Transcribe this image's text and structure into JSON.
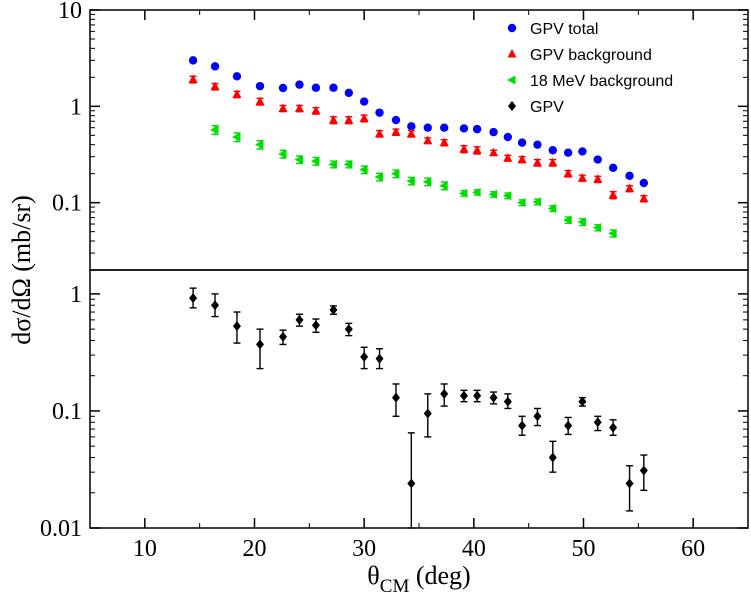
{
  "chart_data": {
    "type": "scatter",
    "xlabel": "θ",
    "xlabel_sub": "CM",
    "xlabel_unit": " (deg)",
    "ylabel": "dσ/dΩ (mb/sr)",
    "xlim": [
      5,
      65
    ],
    "x_ticks": [
      10,
      20,
      30,
      40,
      50,
      60
    ],
    "legend_position": "top-right",
    "panels": [
      {
        "id": "top",
        "ylim": [
          0.02,
          10
        ],
        "y_scale": "log",
        "y_ticks": [
          {
            "value": 10,
            "label": "10"
          },
          {
            "value": 1,
            "label": "1"
          },
          {
            "value": 0.1,
            "label": "0.1"
          }
        ],
        "series": [
          {
            "name": "GPV total",
            "marker": "circle",
            "color": "#0000ff",
            "points": [
              {
                "x": 14.4,
                "y": 3.0
              },
              {
                "x": 16.4,
                "y": 2.6
              },
              {
                "x": 18.4,
                "y": 2.05
              },
              {
                "x": 20.5,
                "y": 1.62
              },
              {
                "x": 22.6,
                "y": 1.55
              },
              {
                "x": 24.1,
                "y": 1.68
              },
              {
                "x": 25.6,
                "y": 1.56
              },
              {
                "x": 27.2,
                "y": 1.56
              },
              {
                "x": 28.6,
                "y": 1.38
              },
              {
                "x": 30.0,
                "y": 1.12
              },
              {
                "x": 31.4,
                "y": 0.86
              },
              {
                "x": 32.9,
                "y": 0.72
              },
              {
                "x": 34.3,
                "y": 0.62
              },
              {
                "x": 35.8,
                "y": 0.6
              },
              {
                "x": 37.3,
                "y": 0.6
              },
              {
                "x": 39.1,
                "y": 0.59
              },
              {
                "x": 40.3,
                "y": 0.58
              },
              {
                "x": 41.8,
                "y": 0.54
              },
              {
                "x": 43.1,
                "y": 0.48
              },
              {
                "x": 44.4,
                "y": 0.42
              },
              {
                "x": 45.8,
                "y": 0.4
              },
              {
                "x": 47.2,
                "y": 0.35
              },
              {
                "x": 48.6,
                "y": 0.33
              },
              {
                "x": 49.9,
                "y": 0.34
              },
              {
                "x": 51.3,
                "y": 0.28
              },
              {
                "x": 52.7,
                "y": 0.23
              },
              {
                "x": 54.2,
                "y": 0.19
              },
              {
                "x": 55.5,
                "y": 0.16
              }
            ]
          },
          {
            "name": "GPV background",
            "marker": "triangle",
            "color": "#ff0000",
            "points": [
              {
                "x": 14.4,
                "y": 1.9,
                "err": 0.15
              },
              {
                "x": 16.4,
                "y": 1.6,
                "err": 0.12
              },
              {
                "x": 18.4,
                "y": 1.33,
                "err": 0.1
              },
              {
                "x": 20.5,
                "y": 1.12,
                "err": 0.09
              },
              {
                "x": 22.6,
                "y": 0.95,
                "err": 0.07
              },
              {
                "x": 24.1,
                "y": 0.95,
                "err": 0.07
              },
              {
                "x": 25.6,
                "y": 0.9,
                "err": 0.07
              },
              {
                "x": 27.2,
                "y": 0.72,
                "err": 0.06
              },
              {
                "x": 28.6,
                "y": 0.72,
                "err": 0.06
              },
              {
                "x": 30.0,
                "y": 0.75,
                "err": 0.06
              },
              {
                "x": 31.4,
                "y": 0.52,
                "err": 0.04
              },
              {
                "x": 32.9,
                "y": 0.54,
                "err": 0.04
              },
              {
                "x": 34.3,
                "y": 0.52,
                "err": 0.04
              },
              {
                "x": 35.8,
                "y": 0.44,
                "err": 0.03
              },
              {
                "x": 37.3,
                "y": 0.42,
                "err": 0.03
              },
              {
                "x": 39.1,
                "y": 0.36,
                "err": 0.03
              },
              {
                "x": 40.3,
                "y": 0.35,
                "err": 0.03
              },
              {
                "x": 41.8,
                "y": 0.33,
                "err": 0.02
              },
              {
                "x": 43.1,
                "y": 0.29,
                "err": 0.02
              },
              {
                "x": 44.4,
                "y": 0.28,
                "err": 0.02
              },
              {
                "x": 45.8,
                "y": 0.26,
                "err": 0.02
              },
              {
                "x": 47.2,
                "y": 0.26,
                "err": 0.02
              },
              {
                "x": 48.6,
                "y": 0.2,
                "err": 0.015
              },
              {
                "x": 49.9,
                "y": 0.18,
                "err": 0.013
              },
              {
                "x": 51.3,
                "y": 0.175,
                "err": 0.013
              },
              {
                "x": 52.7,
                "y": 0.12,
                "err": 0.01
              },
              {
                "x": 54.2,
                "y": 0.14,
                "err": 0.01
              },
              {
                "x": 55.5,
                "y": 0.11,
                "err": 0.008
              }
            ]
          },
          {
            "name": "18 MeV background",
            "marker": "triangle-left",
            "color": "#00dd00",
            "points": [
              {
                "x": 16.4,
                "y": 0.57,
                "err": 0.06
              },
              {
                "x": 18.4,
                "y": 0.48,
                "err": 0.05
              },
              {
                "x": 20.5,
                "y": 0.4,
                "err": 0.04
              },
              {
                "x": 22.6,
                "y": 0.32,
                "err": 0.03
              },
              {
                "x": 24.1,
                "y": 0.28,
                "err": 0.025
              },
              {
                "x": 25.6,
                "y": 0.27,
                "err": 0.025
              },
              {
                "x": 27.2,
                "y": 0.25,
                "err": 0.02
              },
              {
                "x": 28.6,
                "y": 0.25,
                "err": 0.02
              },
              {
                "x": 30.0,
                "y": 0.22,
                "err": 0.02
              },
              {
                "x": 31.4,
                "y": 0.185,
                "err": 0.017
              },
              {
                "x": 32.9,
                "y": 0.2,
                "err": 0.018
              },
              {
                "x": 34.3,
                "y": 0.168,
                "err": 0.015
              },
              {
                "x": 35.8,
                "y": 0.165,
                "err": 0.015
              },
              {
                "x": 37.3,
                "y": 0.15,
                "err": 0.014
              },
              {
                "x": 39.1,
                "y": 0.125,
                "err": 0.008
              },
              {
                "x": 40.3,
                "y": 0.128,
                "err": 0.008
              },
              {
                "x": 41.8,
                "y": 0.122,
                "err": 0.008
              },
              {
                "x": 43.1,
                "y": 0.118,
                "err": 0.008
              },
              {
                "x": 44.4,
                "y": 0.1,
                "err": 0.007
              },
              {
                "x": 45.8,
                "y": 0.102,
                "err": 0.007
              },
              {
                "x": 47.2,
                "y": 0.087,
                "err": 0.006
              },
              {
                "x": 48.6,
                "y": 0.066,
                "err": 0.005
              },
              {
                "x": 49.9,
                "y": 0.063,
                "err": 0.005
              },
              {
                "x": 51.3,
                "y": 0.055,
                "err": 0.004
              },
              {
                "x": 52.7,
                "y": 0.048,
                "err": 0.004
              }
            ]
          }
        ]
      },
      {
        "id": "bottom",
        "ylim": [
          0.01,
          1.6
        ],
        "y_scale": "log",
        "y_ticks": [
          {
            "value": 1,
            "label": "1"
          },
          {
            "value": 0.1,
            "label": "0.1"
          },
          {
            "value": 0.01,
            "label": "0.01"
          }
        ],
        "series": [
          {
            "name": "GPV",
            "marker": "diamond",
            "color": "#000000",
            "points": [
              {
                "x": 14.4,
                "y": 0.92,
                "lo": 0.76,
                "hi": 1.12
              },
              {
                "x": 16.4,
                "y": 0.8,
                "lo": 0.64,
                "hi": 1.0
              },
              {
                "x": 18.4,
                "y": 0.53,
                "lo": 0.38,
                "hi": 0.7
              },
              {
                "x": 20.5,
                "y": 0.37,
                "lo": 0.23,
                "hi": 0.5
              },
              {
                "x": 22.6,
                "y": 0.43,
                "lo": 0.37,
                "hi": 0.49
              },
              {
                "x": 24.1,
                "y": 0.6,
                "lo": 0.53,
                "hi": 0.67
              },
              {
                "x": 25.6,
                "y": 0.54,
                "lo": 0.47,
                "hi": 0.61
              },
              {
                "x": 27.2,
                "y": 0.73,
                "lo": 0.67,
                "hi": 0.79
              },
              {
                "x": 28.6,
                "y": 0.5,
                "lo": 0.44,
                "hi": 0.56
              },
              {
                "x": 30.0,
                "y": 0.29,
                "lo": 0.23,
                "hi": 0.35
              },
              {
                "x": 31.4,
                "y": 0.28,
                "lo": 0.23,
                "hi": 0.34
              },
              {
                "x": 32.9,
                "y": 0.13,
                "lo": 0.09,
                "hi": 0.17
              },
              {
                "x": 34.3,
                "y": 0.024,
                "lo": 0.01,
                "hi": 0.065
              },
              {
                "x": 35.8,
                "y": 0.095,
                "lo": 0.06,
                "hi": 0.14
              },
              {
                "x": 37.3,
                "y": 0.14,
                "lo": 0.11,
                "hi": 0.17
              },
              {
                "x": 39.1,
                "y": 0.135,
                "lo": 0.12,
                "hi": 0.15
              },
              {
                "x": 40.3,
                "y": 0.135,
                "lo": 0.12,
                "hi": 0.15
              },
              {
                "x": 41.8,
                "y": 0.13,
                "lo": 0.115,
                "hi": 0.145
              },
              {
                "x": 43.1,
                "y": 0.12,
                "lo": 0.105,
                "hi": 0.14
              },
              {
                "x": 44.4,
                "y": 0.075,
                "lo": 0.062,
                "hi": 0.09
              },
              {
                "x": 45.8,
                "y": 0.09,
                "lo": 0.075,
                "hi": 0.105
              },
              {
                "x": 47.2,
                "y": 0.04,
                "lo": 0.03,
                "hi": 0.055
              },
              {
                "x": 48.6,
                "y": 0.075,
                "lo": 0.063,
                "hi": 0.088
              },
              {
                "x": 49.9,
                "y": 0.12,
                "lo": 0.11,
                "hi": 0.13
              },
              {
                "x": 51.3,
                "y": 0.08,
                "lo": 0.068,
                "hi": 0.09
              },
              {
                "x": 52.7,
                "y": 0.072,
                "lo": 0.062,
                "hi": 0.084
              },
              {
                "x": 54.2,
                "y": 0.024,
                "lo": 0.014,
                "hi": 0.034
              },
              {
                "x": 55.5,
                "y": 0.031,
                "lo": 0.021,
                "hi": 0.042
              }
            ]
          }
        ]
      }
    ]
  }
}
